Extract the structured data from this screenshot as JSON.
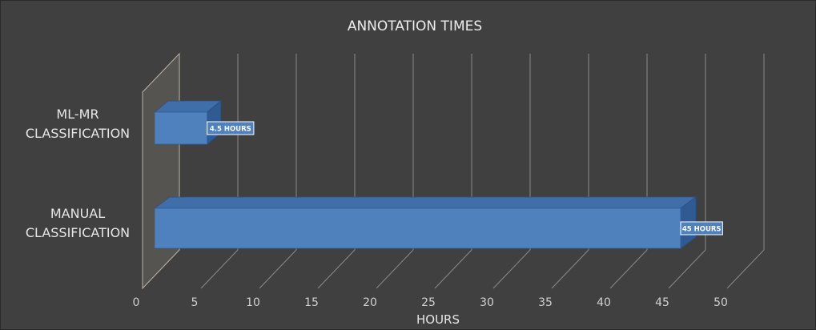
{
  "chart_data": {
    "type": "bar",
    "orientation": "horizontal",
    "style": "3d",
    "title": "ANNOTATION TIMES",
    "xlabel": "HOURS",
    "ylabel": "",
    "categories": [
      [
        "ML-MR",
        "CLASSIFICATION"
      ],
      [
        "MANUAL",
        "CLASSIFICATION"
      ]
    ],
    "values": [
      4.5,
      45
    ],
    "data_labels": [
      "4.5 HOURS",
      "45 HOURS"
    ],
    "xlim": [
      0,
      50
    ],
    "x_ticks": [
      "0",
      "5",
      "10",
      "15",
      "20",
      "25",
      "30",
      "35",
      "40",
      "45",
      "50"
    ],
    "grid": true,
    "legend": "none",
    "colors": {
      "background": "#404040",
      "bar_front": "#4f81bd",
      "bar_top": "#3f6ea8",
      "bar_side": "#2f5a92",
      "gridline": "#8a8a8a",
      "back_wall": "#565450",
      "text": "#e6e6e6"
    }
  }
}
